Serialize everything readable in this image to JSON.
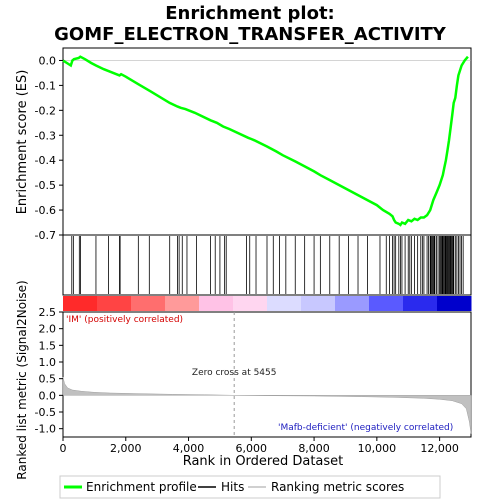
{
  "chart_data": {
    "type": "line",
    "title_line1": "Enrichment plot:",
    "title_line2": "GOMF_ELECTRON_TRANSFER_ACTIVITY",
    "es_panel": {
      "ylabel": "Enrichment score (ES)",
      "ylim": [
        -0.7,
        0.05
      ],
      "yticks": [
        "0.0",
        "-0.1",
        "-0.2",
        "-0.3",
        "-0.4",
        "-0.5",
        "-0.6",
        "-0.7"
      ],
      "ytick_values": [
        0.0,
        -0.1,
        -0.2,
        -0.3,
        -0.4,
        -0.5,
        -0.6,
        -0.7
      ],
      "series": [
        {
          "name": "Enrichment profile",
          "color": "#00ff00",
          "x": [
            0,
            250,
            300,
            350,
            500,
            550,
            700,
            900,
            1050,
            1300,
            1500,
            1800,
            1850,
            2000,
            2400,
            2800,
            3400,
            3650,
            3750,
            3900,
            4000,
            4200,
            4700,
            4900,
            5100,
            5300,
            5900,
            6000,
            6100,
            6500,
            6800,
            7000,
            7400,
            7700,
            8000,
            8200,
            8500,
            8800,
            9100,
            9400,
            9700,
            10000,
            10200,
            10400,
            10500,
            10550,
            10600,
            10700,
            10750,
            10800,
            10900,
            11000,
            11100,
            11200,
            11300,
            11400,
            11500,
            11600,
            11700,
            11800,
            11900,
            12000,
            12100,
            12150,
            12200,
            12250,
            12300,
            12350,
            12400,
            12450,
            12500,
            12550,
            12600,
            12700,
            12800,
            12900
          ],
          "y": [
            0.0,
            -0.02,
            0.0,
            0.005,
            0.01,
            0.015,
            0.005,
            -0.01,
            -0.02,
            -0.035,
            -0.045,
            -0.06,
            -0.055,
            -0.065,
            -0.095,
            -0.125,
            -0.17,
            -0.185,
            -0.19,
            -0.195,
            -0.2,
            -0.21,
            -0.24,
            -0.25,
            -0.265,
            -0.275,
            -0.31,
            -0.315,
            -0.32,
            -0.345,
            -0.365,
            -0.38,
            -0.405,
            -0.425,
            -0.445,
            -0.46,
            -0.48,
            -0.5,
            -0.52,
            -0.54,
            -0.56,
            -0.58,
            -0.6,
            -0.615,
            -0.625,
            -0.64,
            -0.65,
            -0.655,
            -0.66,
            -0.65,
            -0.655,
            -0.64,
            -0.645,
            -0.635,
            -0.64,
            -0.63,
            -0.63,
            -0.62,
            -0.6,
            -0.56,
            -0.53,
            -0.5,
            -0.46,
            -0.43,
            -0.4,
            -0.36,
            -0.32,
            -0.27,
            -0.22,
            -0.17,
            -0.15,
            -0.1,
            -0.06,
            -0.02,
            0.0,
            0.015
          ]
        }
      ]
    },
    "hits": [
      280,
      330,
      520,
      560,
      1050,
      1450,
      1800,
      1820,
      2400,
      2750,
      3400,
      3650,
      3700,
      3800,
      3950,
      4250,
      4700,
      4850,
      5000,
      5150,
      5200,
      5850,
      5950,
      6150,
      6500,
      6700,
      6900,
      7100,
      7400,
      7700,
      8000,
      8200,
      8500,
      8800,
      9100,
      9400,
      9700,
      10100,
      10300,
      10400,
      10500,
      10550,
      10600,
      10700,
      10750,
      10800,
      10900,
      11000,
      11050,
      11100,
      11200,
      11300,
      11400,
      11450,
      11500,
      11600,
      11650,
      11700,
      11720,
      11750,
      11780,
      11800,
      11830,
      11850,
      11900,
      11950,
      12000,
      12020,
      12050,
      12080,
      12100,
      12120,
      12150,
      12180,
      12200,
      12220,
      12250,
      12270,
      12300,
      12330,
      12350,
      12380,
      12400,
      12430,
      12450,
      12500,
      12550,
      12600,
      12650,
      12700,
      12750
    ],
    "heat_colors": [
      "#ff2a2a",
      "#ff4444",
      "#ff6e6e",
      "#ff9a9a",
      "#ffc2e6",
      "#ffd6f0",
      "#dcdcff",
      "#c8c8ff",
      "#9a9aff",
      "#5a5aff",
      "#2a2aee",
      "#0000cc"
    ],
    "metric_panel": {
      "ylabel": "Ranked list metric (Signal2Noise)",
      "ylim": [
        -1.25,
        2.5
      ],
      "yticks": [
        "2.5",
        "2.0",
        "1.5",
        "1.0",
        "0.5",
        "0.0",
        "-0.5",
        "-1.0"
      ],
      "ytick_values": [
        2.5,
        2.0,
        1.5,
        1.0,
        0.5,
        0.0,
        -0.5,
        -1.0
      ],
      "x": [
        0,
        50,
        150,
        300,
        600,
        1000,
        1500,
        2500,
        3500,
        4500,
        5455,
        6500,
        8000,
        9500,
        10500,
        11500,
        12000,
        12400,
        12700,
        12850,
        12950,
        13000
      ],
      "values": [
        0.55,
        0.35,
        0.22,
        0.16,
        0.12,
        0.09,
        0.07,
        0.05,
        0.03,
        0.02,
        0.0,
        -0.01,
        -0.02,
        -0.04,
        -0.06,
        -0.09,
        -0.12,
        -0.16,
        -0.25,
        -0.4,
        -0.8,
        -1.15
      ],
      "label_positive": "'IM' (positively correlated)",
      "label_negative": "'Mafb-deficient' (negatively correlated)",
      "zero_cross_text": "Zero cross at 5455",
      "zero_cross": 5455
    },
    "xlabel": "Rank in Ordered Dataset",
    "xlim": [
      0,
      13000
    ],
    "xticks": [
      "0",
      "2,000",
      "4,000",
      "6,000",
      "8,000",
      "10,000",
      "12,000"
    ],
    "xtick_values": [
      0,
      2000,
      4000,
      6000,
      8000,
      10000,
      12000
    ],
    "legend": [
      {
        "label": "Enrichment profile",
        "color": "#00ff00"
      },
      {
        "label": "Hits",
        "color": "#000000"
      },
      {
        "label": "Ranking metric scores",
        "color": "#c0c0c0"
      }
    ],
    "colors": {
      "es_line": "#00ff00",
      "positive_label": "#d40000",
      "negative_label": "#2020c0",
      "metric_fill": "#c0c0c0"
    }
  }
}
